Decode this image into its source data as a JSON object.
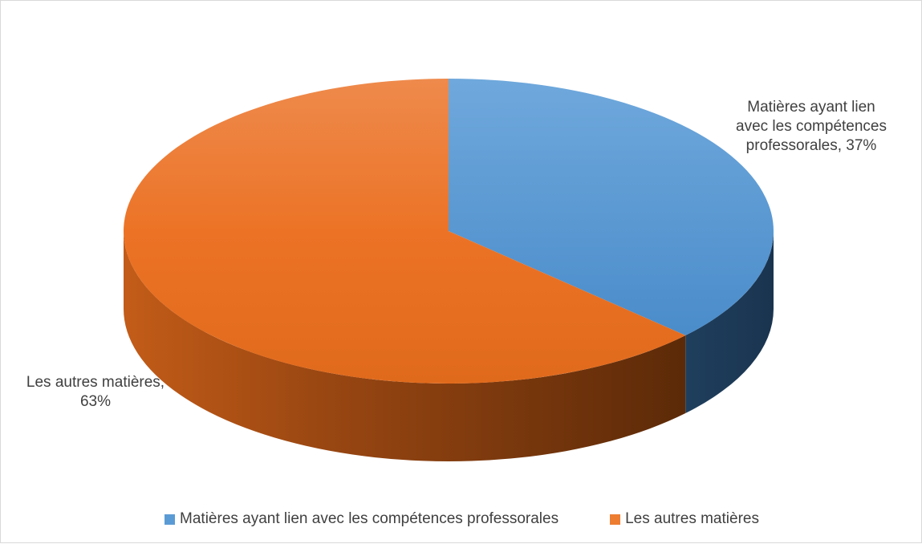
{
  "chart_data": {
    "type": "pie",
    "three_d": true,
    "title": "",
    "categories": [
      "Matières ayant lien avec les compétences professorales",
      "Les autres matières"
    ],
    "values": [
      37,
      63
    ],
    "unit": "%",
    "colors": [
      "#5b9bd5",
      "#ed7d31"
    ],
    "data_labels": [
      {
        "lines": [
          "Matières ayant lien",
          "avec les compétences",
          "professorales, 37%"
        ]
      },
      {
        "lines": [
          "Les autres matières,",
          "63%"
        ]
      }
    ],
    "legend": {
      "position": "bottom",
      "items": [
        {
          "label": "Matières ayant lien avec les compétences professorales",
          "color": "#5b9bd5"
        },
        {
          "label": "Les autres matières",
          "color": "#ed7d31"
        }
      ]
    }
  }
}
